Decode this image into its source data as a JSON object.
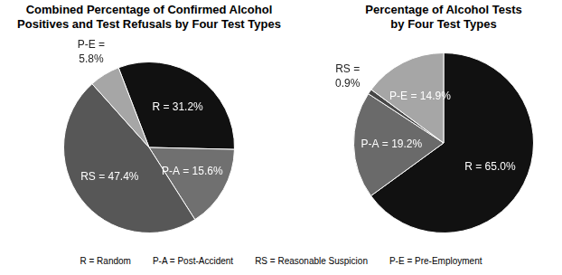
{
  "chart_data": [
    {
      "type": "pie",
      "title": "Combined Percentage of Confirmed Alcohol Positives and Test Refusals by Four Test Types",
      "categories": [
        "R",
        "P-A",
        "RS",
        "P-E"
      ],
      "values": [
        31.2,
        15.6,
        47.4,
        5.8
      ],
      "value_labels": [
        "R = 31.2%",
        "P-A = 15.6%",
        "RS = 47.4%",
        "P-E = 5.8%"
      ],
      "colors": [
        "#111111",
        "#707070",
        "#575757",
        "#a6a6a6"
      ],
      "data_labels": true
    },
    {
      "type": "pie",
      "title": "Percentage of Alcohol Tests by Four Test Types",
      "categories": [
        "R",
        "P-A",
        "RS",
        "P-E"
      ],
      "values": [
        65.0,
        19.2,
        0.9,
        14.9
      ],
      "value_labels": [
        "R = 65.0%",
        "P-A = 19.2%",
        "RS = 0.9%",
        "P-E = 14.9%"
      ],
      "colors": [
        "#111111",
        "#6a6a6a",
        "#474747",
        "#a6a6a6"
      ],
      "data_labels": true
    }
  ],
  "annotations": [
    "R = Random",
    "P-A = Post-Accident",
    "RS = Reasonable Suspicion",
    "P-E = Pre-Employment"
  ]
}
